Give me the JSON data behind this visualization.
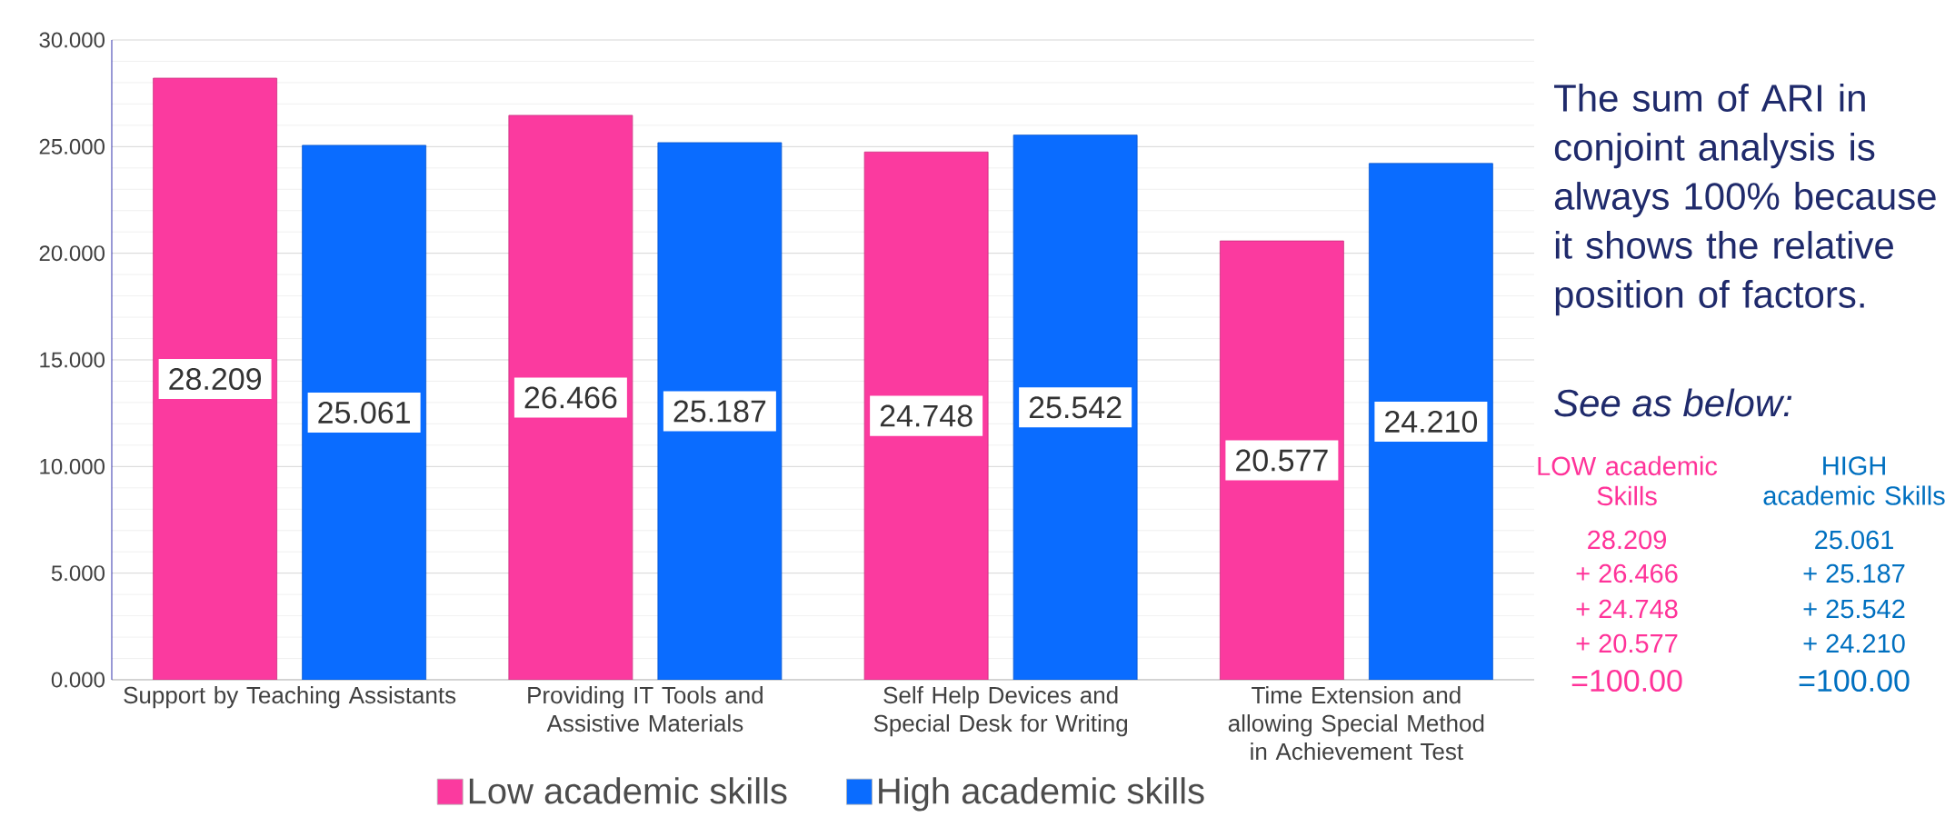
{
  "chart_data": {
    "type": "bar",
    "categories": [
      "Support by Teaching Assistants",
      "Providing IT Tools and Assistive Materials",
      "Self Help Devices and Special Desk for Writing",
      "Time Extension and allowing Special Method in Achievement Test"
    ],
    "series": [
      {
        "name": "Low academic skills",
        "color": "#fb3a9f",
        "values": [
          28.209,
          26.466,
          24.748,
          20.577
        ],
        "value_labels": [
          "28.209",
          "26.466",
          "24.748",
          "20.577"
        ]
      },
      {
        "name": "High academic skills",
        "color": "#0a6cff",
        "values": [
          25.061,
          25.187,
          25.542,
          24.21
        ],
        "value_labels": [
          "25.061",
          "25.187",
          "25.542",
          "24.210"
        ]
      }
    ],
    "ylim": [
      0,
      30
    ],
    "yticks": [
      {
        "value": 0,
        "label": "0.000"
      },
      {
        "value": 5,
        "label": "5.000"
      },
      {
        "value": 10,
        "label": "10.000"
      },
      {
        "value": 15,
        "label": "15.000"
      },
      {
        "value": 20,
        "label": "20.000"
      },
      {
        "value": 25,
        "label": "25.000"
      },
      {
        "value": 30,
        "label": "30.000"
      }
    ],
    "grid": "y",
    "legend": "bottom",
    "annotations": [
      "The sum of ARI in conjoint analysis is always 100% because it shows the relative position of factors.",
      "See as below:",
      "LOW academic Skills",
      "28.209",
      "+ 26.466",
      "+ 24.748",
      "+ 20.577",
      "=100.00",
      "HIGH academic Skills",
      "25.061",
      "+ 25.187",
      "+ 25.542",
      "+ 24.210",
      "=100.00"
    ]
  }
}
